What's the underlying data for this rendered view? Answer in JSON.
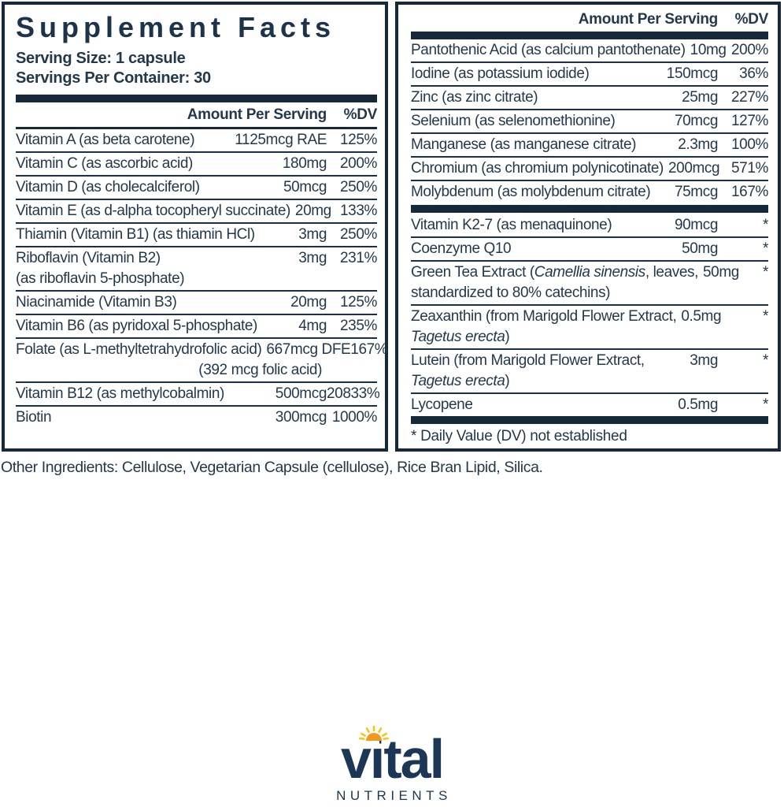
{
  "colors": {
    "navy_bar": "#15293b",
    "text": "#24384c",
    "logo_navy": "#1c3655",
    "sun_orange": "#f09b1d",
    "sun_yellow": "#f4c51d"
  },
  "left_panel": {
    "title": "Supplement Facts",
    "serving_size": "Serving Size: 1 capsule",
    "servings_per_container": "Servings Per Container: 30",
    "header": {
      "amount": "Amount Per Serving",
      "dv": "%DV"
    },
    "rows": [
      {
        "line1": [
          {
            "t": "Vitamin A (as beta carotene)"
          }
        ],
        "amount": "1125mcg RAE",
        "dv": "125%"
      },
      {
        "divider": "thin",
        "line1": [
          {
            "t": "Vitamin C (as ascorbic acid)"
          }
        ],
        "amount": "180mg",
        "dv": "200%"
      },
      {
        "divider": "thin",
        "line1": [
          {
            "t": "Vitamin D (as cholecalciferol)"
          }
        ],
        "amount": "50mcg",
        "dv": "250%"
      },
      {
        "divider": "thin",
        "line1": [
          {
            "t": "Vitamin E (as d-alpha tocopheryl succinate)"
          }
        ],
        "amount": "20mg",
        "dv": "133%"
      },
      {
        "divider": "thin",
        "line1": [
          {
            "t": "Thiamin (Vitamin B1) (as thiamin HCl)"
          }
        ],
        "amount": "3mg",
        "dv": "250%"
      },
      {
        "divider": "thin",
        "line1": [
          {
            "t": "Riboflavin (Vitamin B2)"
          }
        ],
        "line2": [
          {
            "t": "(as riboflavin 5-phosphate)"
          }
        ],
        "amount": "3mg",
        "dv": "231%"
      },
      {
        "divider": "thin",
        "line1": [
          {
            "t": "Niacinamide (Vitamin B3)"
          }
        ],
        "amount": "20mg",
        "dv": "125%"
      },
      {
        "divider": "thin",
        "line1": [
          {
            "t": "Vitamin B6 (as pyridoxal 5-phosphate)"
          }
        ],
        "amount": "4mg",
        "dv": "235%"
      },
      {
        "divider": "thin",
        "line1": [
          {
            "t": "Folate (as L-methyltetrahydrofolic acid)"
          }
        ],
        "amount": "667mcg DFE",
        "dv": "167%",
        "line2": [
          {
            "t": "(392 mcg folic acid)"
          }
        ],
        "line2_align": "amount"
      },
      {
        "divider": "thin",
        "line1": [
          {
            "t": "Vitamin B12 (as methylcobalmin)"
          }
        ],
        "amount": "500mcg",
        "dv": "20833%"
      },
      {
        "divider": "thin",
        "line1": [
          {
            "t": "Biotin"
          }
        ],
        "amount": "300mcg",
        "dv": "1000%"
      }
    ]
  },
  "right_panel": {
    "header": {
      "amount": "Amount Per Serving",
      "dv": "%DV"
    },
    "rows": [
      {
        "line1": [
          {
            "t": "Pantothenic Acid (as calcium pantothenate)"
          }
        ],
        "amount": "10mg",
        "dv": "200%"
      },
      {
        "divider": "thin",
        "line1": [
          {
            "t": "Iodine (as potassium iodide)"
          }
        ],
        "amount": "150mcg",
        "dv": "36%"
      },
      {
        "divider": "thin",
        "line1": [
          {
            "t": "Zinc (as zinc citrate)"
          }
        ],
        "amount": "25mg",
        "dv": "227%"
      },
      {
        "divider": "thin",
        "line1": [
          {
            "t": "Selenium (as selenomethionine)"
          }
        ],
        "amount": "70mcg",
        "dv": "127%"
      },
      {
        "divider": "thin",
        "line1": [
          {
            "t": "Manganese (as manganese citrate)"
          }
        ],
        "amount": "2.3mg",
        "dv": "100%"
      },
      {
        "divider": "thin",
        "line1": [
          {
            "t": "Chromium (as chromium polynicotinate)"
          }
        ],
        "amount": "200mcg",
        "dv": "571%"
      },
      {
        "divider": "thin",
        "line1": [
          {
            "t": "Molybdenum (as molybdenum citrate)"
          }
        ],
        "amount": "75mcg",
        "dv": "167%"
      },
      {
        "divider": "thick",
        "line1": [
          {
            "t": "Vitamin K2-7 (as menaquinone)"
          }
        ],
        "amount": "90mcg",
        "dv": "*"
      },
      {
        "divider": "thin",
        "line1": [
          {
            "t": "Coenzyme Q10"
          }
        ],
        "amount": "50mg",
        "dv": "*"
      },
      {
        "divider": "thin",
        "line1": [
          {
            "t": "Green Tea Extract ("
          },
          {
            "t": "Camellia sinensis",
            "italic": true
          },
          {
            "t": ", leaves,"
          }
        ],
        "line2": [
          {
            "t": "standardized to 80% catechins)"
          }
        ],
        "amount": "50mg",
        "dv": "*"
      },
      {
        "divider": "thin",
        "line1": [
          {
            "t": "Zeaxanthin (from Marigold Flower Extract,"
          }
        ],
        "line2": [
          {
            "t": "Tagetus erecta",
            "italic": true
          },
          {
            "t": ")"
          }
        ],
        "amount": "0.5mg",
        "dv": "*"
      },
      {
        "divider": "thin",
        "line1": [
          {
            "t": "Lutein (from Marigold Flower Extract,"
          }
        ],
        "line2": [
          {
            "t": "Tagetus erecta",
            "italic": true
          },
          {
            "t": ")"
          }
        ],
        "amount": "3mg",
        "dv": "*"
      },
      {
        "divider": "thin",
        "line1": [
          {
            "t": "Lycopene"
          }
        ],
        "amount": "0.5mg",
        "dv": "*"
      }
    ],
    "footnote": "* Daily Value (DV) not established"
  },
  "other_ingredients": "Other Ingredients: Cellulose, Vegetarian Capsule (cellulose), Rice Bran Lipid, Silica.",
  "logo": {
    "brand": "vital",
    "sub": "NUTRIENTS"
  }
}
